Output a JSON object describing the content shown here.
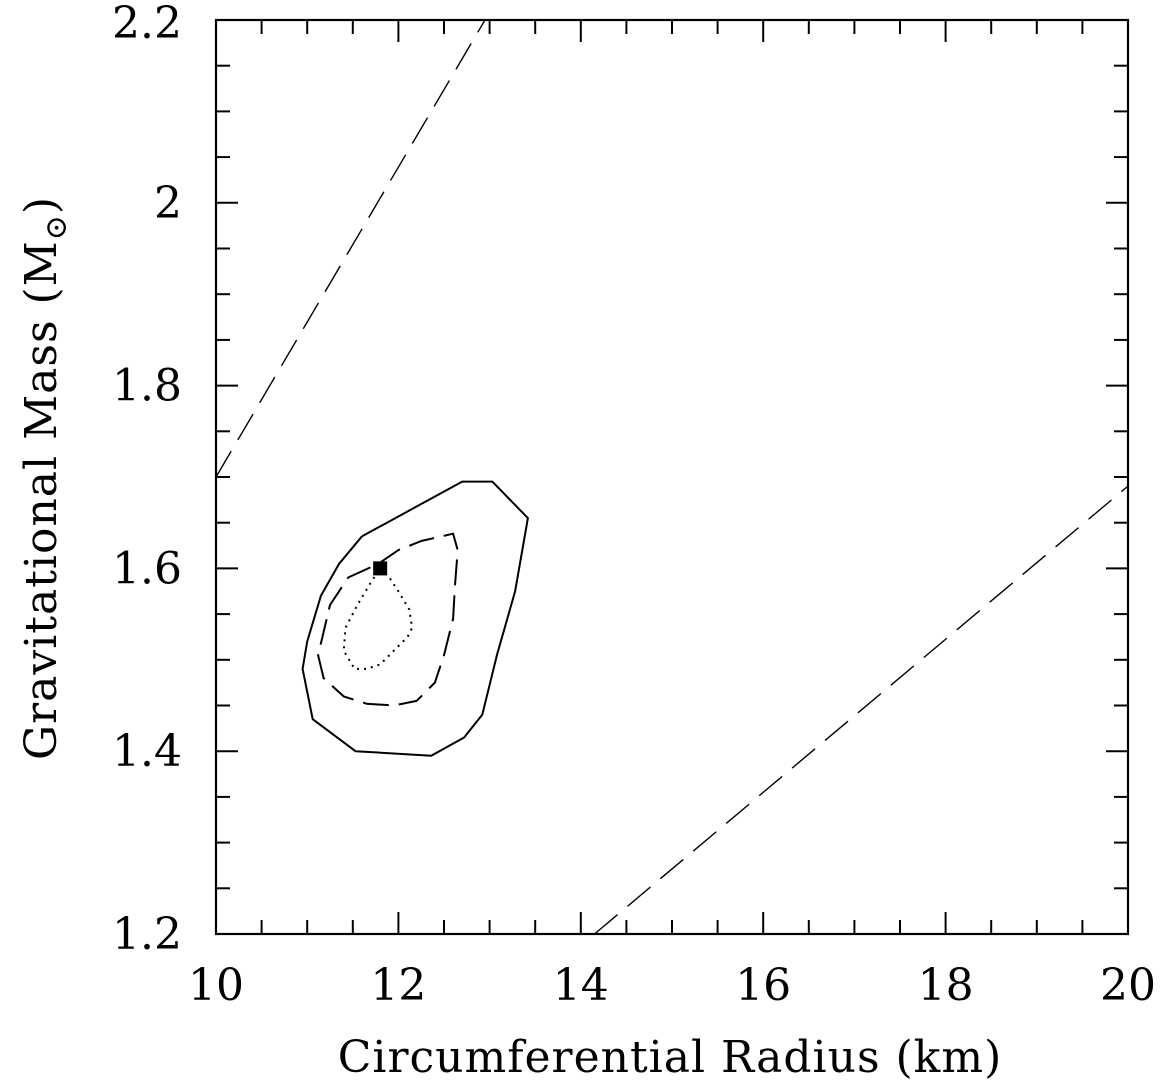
{
  "chart_data": {
    "type": "line",
    "title": "",
    "xlabel": "Circumferential Radius (km)",
    "ylabel_main": "Gravitational Mass (M",
    "ylabel_sub": "⊙",
    "ylabel_close": ")",
    "xlim": [
      10,
      20
    ],
    "ylim": [
      1.2,
      2.2
    ],
    "xticks": [
      10,
      12,
      14,
      16,
      18,
      20
    ],
    "xtick_labels": [
      "10",
      "12",
      "14",
      "16",
      "18",
      "20"
    ],
    "yticks": [
      1.2,
      1.4,
      1.6,
      1.8,
      2.0,
      2.2
    ],
    "ytick_labels": [
      "1.2",
      "1.4",
      "1.6",
      "1.8",
      "2",
      "2.2"
    ],
    "x_minor_step": 0.5,
    "y_minor_step": 0.05,
    "grid": false,
    "legend": "none",
    "series": [
      {
        "style": "long-dash",
        "x": [
          10.0,
          12.95
        ],
        "y": [
          1.7,
          2.2
        ]
      },
      {
        "style": "long-dash",
        "x": [
          14.15,
          20.0
        ],
        "y": [
          1.2,
          1.69
        ]
      },
      {
        "style": "solid",
        "x": [
          11.6,
          12.7,
          13.03,
          13.42,
          13.28,
          13.08,
          12.92,
          12.72,
          12.36,
          11.53,
          11.06,
          10.95,
          11.0,
          11.15,
          11.35,
          11.6
        ],
        "y": [
          1.635,
          1.695,
          1.695,
          1.655,
          1.575,
          1.505,
          1.44,
          1.415,
          1.395,
          1.4,
          1.435,
          1.49,
          1.52,
          1.57,
          1.605,
          1.635
        ]
      },
      {
        "style": "dashed",
        "x": [
          11.78,
          12.0,
          12.25,
          12.6,
          12.65,
          12.62,
          12.6,
          12.5,
          12.4,
          12.2,
          11.95,
          11.65,
          11.4,
          11.18,
          11.12,
          11.25,
          11.45,
          11.78
        ],
        "y": [
          1.605,
          1.62,
          1.63,
          1.638,
          1.62,
          1.58,
          1.545,
          1.505,
          1.475,
          1.455,
          1.45,
          1.452,
          1.46,
          1.48,
          1.505,
          1.56,
          1.59,
          1.605
        ]
      },
      {
        "style": "dotted",
        "x": [
          11.8,
          11.9,
          12.0,
          12.12,
          12.15,
          12.1,
          11.95,
          11.8,
          11.65,
          11.52,
          11.4,
          11.42,
          11.55,
          11.7,
          11.8
        ],
        "y": [
          1.6,
          1.59,
          1.575,
          1.555,
          1.535,
          1.525,
          1.51,
          1.495,
          1.49,
          1.49,
          1.51,
          1.535,
          1.56,
          1.585,
          1.6
        ]
      }
    ],
    "markers": [
      {
        "shape": "square",
        "x": 11.8,
        "y": 1.6
      }
    ]
  }
}
